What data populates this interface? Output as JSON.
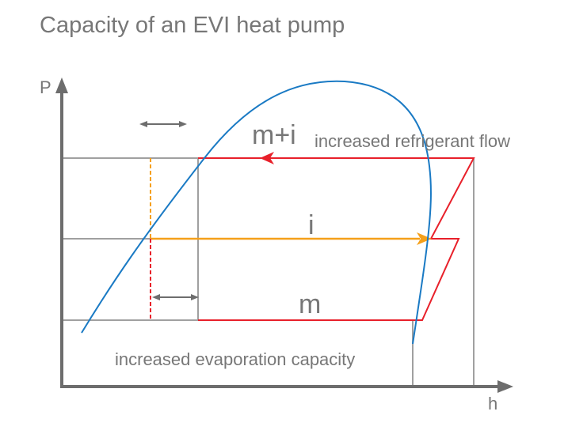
{
  "title": "Capacity of an EVI heat pump",
  "axes": {
    "y_label": "P",
    "x_label": "h"
  },
  "labels": {
    "m_plus_i": "m+i",
    "increased_flow": "increased refrigerant flow",
    "i": "i",
    "m": "m",
    "increased_capacity": "increased evaporation capacity"
  },
  "colors": {
    "axis": "#6d6d6d",
    "grid": "#a0a0a0",
    "cycle": "#e8202a",
    "injection": "#f5a01a",
    "dome": "#1a7ac4",
    "text": "#777777"
  }
}
